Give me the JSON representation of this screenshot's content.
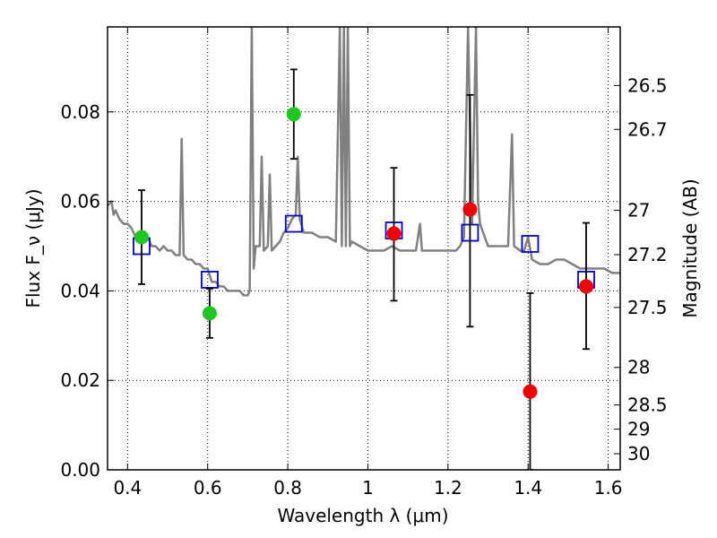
{
  "chart_data": {
    "type": "scatter",
    "xlabel": "Wavelength λ (μm)",
    "ylabel": "Flux F_ν (μJy)",
    "ylabel_right": "Magnitude (AB)",
    "xlim": [
      0.35,
      1.63
    ],
    "ylim": [
      0.0,
      0.099
    ],
    "x_ticks": [
      {
        "value": 0.4,
        "label": "0.4"
      },
      {
        "value": 0.6,
        "label": "0.6"
      },
      {
        "value": 0.8,
        "label": "0.8"
      },
      {
        "value": 1.0,
        "label": "1"
      },
      {
        "value": 1.2,
        "label": "1.2"
      },
      {
        "value": 1.4,
        "label": "1.4"
      },
      {
        "value": 1.6,
        "label": "1.6"
      }
    ],
    "y_ticks": [
      {
        "value": 0.0,
        "label": "0.00"
      },
      {
        "value": 0.02,
        "label": "0.02"
      },
      {
        "value": 0.04,
        "label": "0.04"
      },
      {
        "value": 0.06,
        "label": "0.06"
      },
      {
        "value": 0.08,
        "label": "0.08"
      }
    ],
    "right_ticks": [
      {
        "flux": 0.0859,
        "label": "26.5"
      },
      {
        "flux": 0.0761,
        "label": "26.7"
      },
      {
        "flux": 0.058,
        "label": "27"
      },
      {
        "flux": 0.0481,
        "label": "27.2"
      },
      {
        "flux": 0.0363,
        "label": "27.5"
      },
      {
        "flux": 0.0229,
        "label": "28"
      },
      {
        "flux": 0.0145,
        "label": "28.5"
      },
      {
        "flux": 0.0091,
        "label": "29"
      },
      {
        "flux": 0.0036,
        "label": "30"
      }
    ],
    "grid": true,
    "colors": {
      "model": "#808080",
      "model_points": "#0000cc",
      "green": "#1ec81e",
      "red": "#ee0000",
      "errorbar": "#000000"
    },
    "model_spectrum": [
      [
        0.35,
        0.059
      ],
      [
        0.36,
        0.06
      ],
      [
        0.365,
        0.057
      ],
      [
        0.37,
        0.058
      ],
      [
        0.38,
        0.056
      ],
      [
        0.39,
        0.055
      ],
      [
        0.4,
        0.055
      ],
      [
        0.41,
        0.054
      ],
      [
        0.42,
        0.052
      ],
      [
        0.43,
        0.051
      ],
      [
        0.44,
        0.051
      ],
      [
        0.45,
        0.052
      ],
      [
        0.46,
        0.05
      ],
      [
        0.47,
        0.05
      ],
      [
        0.48,
        0.049
      ],
      [
        0.49,
        0.05
      ],
      [
        0.5,
        0.049
      ],
      [
        0.51,
        0.049
      ],
      [
        0.52,
        0.048
      ],
      [
        0.53,
        0.048
      ],
      [
        0.535,
        0.074
      ],
      [
        0.54,
        0.048
      ],
      [
        0.55,
        0.047
      ],
      [
        0.56,
        0.047
      ],
      [
        0.57,
        0.046
      ],
      [
        0.58,
        0.046
      ],
      [
        0.59,
        0.045
      ],
      [
        0.6,
        0.045
      ],
      [
        0.61,
        0.042
      ],
      [
        0.62,
        0.042
      ],
      [
        0.63,
        0.041
      ],
      [
        0.64,
        0.041
      ],
      [
        0.65,
        0.04
      ],
      [
        0.66,
        0.04
      ],
      [
        0.67,
        0.04
      ],
      [
        0.68,
        0.04
      ],
      [
        0.69,
        0.039
      ],
      [
        0.7,
        0.039
      ],
      [
        0.705,
        0.04
      ],
      [
        0.71,
        0.099
      ],
      [
        0.715,
        0.045
      ],
      [
        0.72,
        0.05
      ],
      [
        0.73,
        0.05
      ],
      [
        0.735,
        0.07
      ],
      [
        0.74,
        0.049
      ],
      [
        0.75,
        0.05
      ],
      [
        0.755,
        0.066
      ],
      [
        0.76,
        0.049
      ],
      [
        0.77,
        0.05
      ],
      [
        0.78,
        0.051
      ],
      [
        0.79,
        0.053
      ],
      [
        0.8,
        0.054
      ],
      [
        0.81,
        0.056
      ],
      [
        0.82,
        0.057
      ],
      [
        0.825,
        0.07
      ],
      [
        0.83,
        0.056
      ],
      [
        0.84,
        0.053
      ],
      [
        0.85,
        0.053
      ],
      [
        0.86,
        0.053
      ],
      [
        0.88,
        0.052
      ],
      [
        0.9,
        0.052
      ],
      [
        0.92,
        0.051
      ],
      [
        0.93,
        0.099
      ],
      [
        0.935,
        0.05
      ],
      [
        0.94,
        0.099
      ],
      [
        0.945,
        0.05
      ],
      [
        0.95,
        0.099
      ],
      [
        0.955,
        0.05
      ],
      [
        0.96,
        0.051
      ],
      [
        0.98,
        0.05
      ],
      [
        1.0,
        0.049
      ],
      [
        1.02,
        0.049
      ],
      [
        1.04,
        0.049
      ],
      [
        1.06,
        0.05
      ],
      [
        1.08,
        0.049
      ],
      [
        1.1,
        0.049
      ],
      [
        1.12,
        0.049
      ],
      [
        1.13,
        0.055
      ],
      [
        1.135,
        0.049
      ],
      [
        1.15,
        0.049
      ],
      [
        1.17,
        0.049
      ],
      [
        1.18,
        0.049
      ],
      [
        1.19,
        0.049
      ],
      [
        1.2,
        0.049
      ],
      [
        1.22,
        0.049
      ],
      [
        1.23,
        0.05
      ],
      [
        1.24,
        0.052
      ],
      [
        1.25,
        0.099
      ],
      [
        1.26,
        0.055
      ],
      [
        1.27,
        0.099
      ],
      [
        1.275,
        0.06
      ],
      [
        1.28,
        0.055
      ],
      [
        1.3,
        0.05
      ],
      [
        1.32,
        0.05
      ],
      [
        1.34,
        0.05
      ],
      [
        1.35,
        0.05
      ],
      [
        1.36,
        0.075
      ],
      [
        1.365,
        0.05
      ],
      [
        1.38,
        0.049
      ],
      [
        1.39,
        0.049
      ],
      [
        1.4,
        0.052
      ],
      [
        1.41,
        0.047
      ],
      [
        1.43,
        0.046
      ],
      [
        1.45,
        0.046
      ],
      [
        1.47,
        0.047
      ],
      [
        1.49,
        0.047
      ],
      [
        1.51,
        0.046
      ],
      [
        1.53,
        0.045
      ],
      [
        1.55,
        0.045
      ],
      [
        1.57,
        0.045
      ],
      [
        1.59,
        0.045
      ],
      [
        1.61,
        0.044
      ],
      [
        1.63,
        0.044
      ]
    ],
    "model_points": [
      {
        "x": 0.435,
        "y": 0.05
      },
      {
        "x": 0.605,
        "y": 0.0425
      },
      {
        "x": 0.815,
        "y": 0.055
      },
      {
        "x": 1.065,
        "y": 0.0535
      },
      {
        "x": 1.255,
        "y": 0.053
      },
      {
        "x": 1.405,
        "y": 0.0505
      },
      {
        "x": 1.545,
        "y": 0.0425
      }
    ],
    "observed_points": [
      {
        "x": 0.435,
        "y": 0.052,
        "err_low": 0.0415,
        "err_high": 0.0625,
        "color": "green"
      },
      {
        "x": 0.605,
        "y": 0.035,
        "err_low": 0.0295,
        "err_high": 0.0405,
        "color": "green"
      },
      {
        "x": 0.815,
        "y": 0.0795,
        "err_low": 0.0695,
        "err_high": 0.0895,
        "color": "green"
      },
      {
        "x": 1.065,
        "y": 0.0528,
        "err_low": 0.0378,
        "err_high": 0.0675,
        "color": "red"
      },
      {
        "x": 1.255,
        "y": 0.0582,
        "err_low": 0.032,
        "err_high": 0.0838,
        "color": "red"
      },
      {
        "x": 1.405,
        "y": 0.0175,
        "err_low": 0.0,
        "err_high": 0.0395,
        "color": "red"
      },
      {
        "x": 1.545,
        "y": 0.041,
        "err_low": 0.027,
        "err_high": 0.0552,
        "color": "red"
      }
    ]
  }
}
